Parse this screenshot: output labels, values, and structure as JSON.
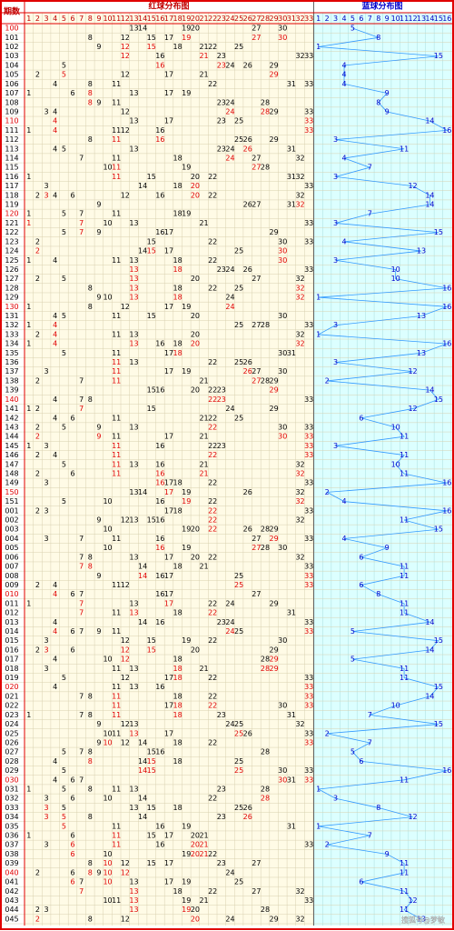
{
  "header": {
    "period": "期数",
    "red_title": "红球分布图",
    "blue_title": "蓝球分布图"
  },
  "red_columns": [
    1,
    2,
    3,
    4,
    5,
    6,
    7,
    8,
    9,
    10,
    11,
    12,
    13,
    14,
    15,
    16,
    17,
    18,
    19,
    20,
    21,
    22,
    23,
    24,
    25,
    26,
    27,
    28,
    29,
    30,
    31,
    32,
    33
  ],
  "blue_columns": [
    1,
    2,
    3,
    4,
    5,
    6,
    7,
    8,
    9,
    10,
    11,
    12,
    13,
    14,
    15,
    16
  ],
  "rows": [
    {
      "period": "100",
      "red": [
        13,
        14,
        19,
        20,
        27,
        30
      ],
      "blue": 5
    },
    {
      "period": "101",
      "red": [
        8,
        12,
        15,
        17,
        19,
        27,
        30
      ],
      "blue": 8
    },
    {
      "period": "102",
      "red": [
        9,
        12,
        15,
        18,
        21,
        22,
        25
      ],
      "blue": 1
    },
    {
      "period": "103",
      "red": [
        12,
        16,
        21,
        23,
        32,
        33
      ],
      "blue": 15
    },
    {
      "period": "104",
      "red": [
        5,
        16,
        23,
        24,
        26,
        29
      ],
      "blue": 4
    },
    {
      "period": "105",
      "red": [
        2,
        5,
        12,
        17,
        21,
        29
      ],
      "blue": 4
    },
    {
      "period": "106",
      "red": [
        4,
        8,
        11,
        22,
        31,
        33
      ],
      "blue": 4
    },
    {
      "period": "107",
      "red": [
        1,
        6,
        8,
        13,
        17,
        19
      ],
      "blue": 9
    },
    {
      "period": "108",
      "red": [
        8,
        9,
        11,
        23,
        24,
        28
      ],
      "blue": 8
    },
    {
      "period": "109",
      "red": [
        3,
        4,
        12,
        24,
        28,
        29,
        33
      ],
      "blue": 9
    },
    {
      "period": "110",
      "red": [
        4,
        13,
        17,
        23,
        25,
        33
      ],
      "blue": 14
    },
    {
      "period": "111",
      "red": [
        1,
        4,
        11,
        12,
        16,
        33
      ],
      "blue": 16
    },
    {
      "period": "112",
      "red": [
        8,
        11,
        16,
        25,
        26,
        29
      ],
      "blue": 3
    },
    {
      "period": "113",
      "red": [
        4,
        5,
        13,
        23,
        24,
        26,
        31
      ],
      "blue": 11
    },
    {
      "period": "114",
      "red": [
        7,
        11,
        18,
        24,
        27,
        32
      ],
      "blue": 4
    },
    {
      "period": "115",
      "red": [
        10,
        11,
        19,
        27,
        28
      ],
      "blue": 7
    },
    {
      "period": "116",
      "red": [
        1,
        11,
        15,
        20,
        22,
        31,
        32
      ],
      "blue": 3
    },
    {
      "period": "117",
      "red": [
        3,
        14,
        18,
        20,
        33
      ],
      "blue": 12
    },
    {
      "period": "118",
      "red": [
        2,
        3,
        4,
        6,
        12,
        16,
        20,
        22,
        32
      ],
      "blue": 14
    },
    {
      "period": "119",
      "red": [
        9,
        26,
        27,
        31,
        32
      ],
      "blue": 14
    },
    {
      "period": "120",
      "red": [
        1,
        5,
        7,
        11,
        18,
        19
      ],
      "blue": 7
    },
    {
      "period": "121",
      "red": [
        1,
        7,
        10,
        13,
        21,
        33
      ],
      "blue": 3
    },
    {
      "period": "122",
      "red": [
        5,
        7,
        9,
        16,
        17,
        29
      ],
      "blue": 15
    },
    {
      "period": "123",
      "red": [
        2,
        15,
        22,
        30,
        33
      ],
      "blue": 4
    },
    {
      "period": "124",
      "red": [
        2,
        14,
        15,
        17,
        25,
        30
      ],
      "blue": 13
    },
    {
      "period": "125",
      "red": [
        1,
        4,
        11,
        13,
        18,
        22,
        30
      ],
      "blue": 3
    },
    {
      "period": "126",
      "red": [
        13,
        18,
        23,
        24,
        26,
        33
      ],
      "blue": 10
    },
    {
      "period": "127",
      "red": [
        2,
        5,
        13,
        20,
        27,
        32
      ],
      "blue": 10
    },
    {
      "period": "128",
      "red": [
        8,
        13,
        18,
        22,
        25,
        32
      ],
      "blue": 16
    },
    {
      "period": "129",
      "red": [
        9,
        10,
        13,
        18,
        24,
        32
      ],
      "blue": 1
    },
    {
      "period": "130",
      "red": [
        1,
        8,
        12,
        17,
        19,
        24
      ],
      "blue": 16
    },
    {
      "period": "131",
      "red": [
        4,
        5,
        11,
        15,
        20,
        30
      ],
      "blue": 13
    },
    {
      "period": "132",
      "red": [
        1,
        4,
        25,
        27,
        28,
        33
      ],
      "blue": 3
    },
    {
      "period": "133",
      "red": [
        2,
        4,
        11,
        13,
        20,
        32
      ],
      "blue": 1
    },
    {
      "period": "134",
      "red": [
        1,
        4,
        13,
        16,
        18,
        20,
        32
      ],
      "blue": 16
    },
    {
      "period": "135",
      "red": [
        5,
        11,
        17,
        18,
        30,
        31
      ],
      "blue": 13
    },
    {
      "period": "136",
      "red": [
        11,
        13,
        22,
        25,
        26
      ],
      "blue": 3
    },
    {
      "period": "137",
      "red": [
        3,
        11,
        17,
        19,
        26,
        27,
        30
      ],
      "blue": 12
    },
    {
      "period": "138",
      "red": [
        2,
        7,
        11,
        21,
        27,
        28,
        29
      ],
      "blue": 2
    },
    {
      "period": "139",
      "red": [
        15,
        16,
        20,
        22,
        23,
        29
      ],
      "blue": 14
    },
    {
      "period": "140",
      "red": [
        4,
        7,
        8,
        22,
        23,
        33
      ],
      "blue": 15
    },
    {
      "period": "141",
      "red": [
        1,
        2,
        7,
        15,
        24,
        29
      ],
      "blue": 12
    },
    {
      "period": "142",
      "red": [
        4,
        6,
        11,
        21,
        22,
        25
      ],
      "blue": 6
    },
    {
      "period": "143",
      "red": [
        2,
        5,
        9,
        13,
        22,
        30,
        33
      ],
      "blue": 10
    },
    {
      "period": "144",
      "red": [
        2,
        9,
        11,
        17,
        21,
        30,
        33
      ],
      "blue": 11
    },
    {
      "period": "145",
      "red": [
        1,
        3,
        11,
        16,
        22,
        23,
        33
      ],
      "blue": 3
    },
    {
      "period": "146",
      "red": [
        2,
        4,
        11,
        22,
        33
      ],
      "blue": 11
    },
    {
      "period": "147",
      "red": [
        5,
        11,
        13,
        16,
        21,
        32
      ],
      "blue": 10
    },
    {
      "period": "148",
      "red": [
        2,
        6,
        11,
        16,
        21,
        32
      ],
      "blue": 11
    },
    {
      "period": "149",
      "red": [
        3,
        16,
        17,
        18,
        22,
        33
      ],
      "blue": 16
    },
    {
      "period": "150",
      "red": [
        13,
        14,
        17,
        19,
        26,
        32
      ],
      "blue": 2
    },
    {
      "period": "151",
      "red": [
        5,
        10,
        16,
        19,
        22,
        32
      ],
      "blue": 4
    },
    {
      "period": "001",
      "red": [
        2,
        3,
        17,
        18,
        22,
        33
      ],
      "blue": 16
    },
    {
      "period": "002",
      "red": [
        9,
        12,
        13,
        15,
        16,
        22,
        32
      ],
      "blue": 11
    },
    {
      "period": "003",
      "red": [
        10,
        19,
        20,
        22,
        26,
        28,
        29
      ],
      "blue": 15
    },
    {
      "period": "004",
      "red": [
        3,
        7,
        11,
        16,
        27,
        29,
        33
      ],
      "blue": 4
    },
    {
      "period": "005",
      "red": [
        10,
        16,
        19,
        27,
        28,
        30
      ],
      "blue": 9
    },
    {
      "period": "006",
      "red": [
        7,
        8,
        13,
        17,
        20,
        22,
        32
      ],
      "blue": 6
    },
    {
      "period": "007",
      "red": [
        7,
        8,
        14,
        18,
        21,
        33
      ],
      "blue": 11
    },
    {
      "period": "008",
      "red": [
        9,
        14,
        16,
        17,
        25,
        33
      ],
      "blue": 11
    },
    {
      "period": "009",
      "red": [
        2,
        4,
        11,
        12,
        25,
        33
      ],
      "blue": 6
    },
    {
      "period": "010",
      "red": [
        4,
        6,
        7,
        16,
        17,
        27
      ],
      "blue": 8
    },
    {
      "period": "011",
      "red": [
        1,
        7,
        13,
        17,
        22,
        24,
        29
      ],
      "blue": 11
    },
    {
      "period": "012",
      "red": [
        7,
        11,
        13,
        18,
        22,
        31
      ],
      "blue": 11
    },
    {
      "period": "013",
      "red": [
        4,
        14,
        16,
        23,
        24,
        33
      ],
      "blue": 14
    },
    {
      "period": "014",
      "red": [
        4,
        6,
        7,
        9,
        11,
        24,
        25,
        33
      ],
      "blue": 5
    },
    {
      "period": "015",
      "red": [
        3,
        12,
        15,
        19,
        22,
        30
      ],
      "blue": 15
    },
    {
      "period": "016",
      "red": [
        2,
        3,
        6,
        12,
        15,
        20,
        29
      ],
      "blue": 14
    },
    {
      "period": "017",
      "red": [
        4,
        10,
        12,
        18,
        28,
        29
      ],
      "blue": 5
    },
    {
      "period": "018",
      "red": [
        3,
        11,
        13,
        18,
        21,
        28,
        29
      ],
      "blue": 11
    },
    {
      "period": "019",
      "red": [
        5,
        12,
        17,
        18,
        22,
        33
      ],
      "blue": 11
    },
    {
      "period": "020",
      "red": [
        4,
        11,
        13,
        16,
        33
      ],
      "blue": 15
    },
    {
      "period": "021",
      "red": [
        7,
        8,
        11,
        18,
        22,
        33
      ],
      "blue": 14
    },
    {
      "period": "022",
      "red": [
        11,
        17,
        18,
        22,
        30,
        33
      ],
      "blue": 10
    },
    {
      "period": "023",
      "red": [
        1,
        7,
        8,
        11,
        18,
        23,
        31
      ],
      "blue": 7
    },
    {
      "period": "024",
      "red": [
        9,
        12,
        13,
        24,
        25,
        32
      ],
      "blue": 15
    },
    {
      "period": "025",
      "red": [
        10,
        11,
        13,
        17,
        25,
        26,
        33
      ],
      "blue": 2
    },
    {
      "period": "026",
      "red": [
        9,
        10,
        12,
        14,
        18,
        22,
        33
      ],
      "blue": 7
    },
    {
      "period": "027",
      "red": [
        5,
        7,
        8,
        15,
        16,
        28
      ],
      "blue": 5
    },
    {
      "period": "028",
      "red": [
        4,
        8,
        14,
        15,
        18,
        25
      ],
      "blue": 6
    },
    {
      "period": "029",
      "red": [
        5,
        14,
        15,
        25,
        30,
        33
      ],
      "blue": 16
    },
    {
      "period": "030",
      "red": [
        4,
        6,
        7,
        30,
        31,
        33
      ],
      "blue": 11
    },
    {
      "period": "031",
      "red": [
        1,
        5,
        8,
        11,
        13,
        23,
        28
      ],
      "blue": 1
    },
    {
      "period": "032",
      "red": [
        3,
        6,
        10,
        14,
        22,
        28
      ],
      "blue": 3
    },
    {
      "period": "033",
      "red": [
        3,
        5,
        13,
        15,
        18,
        25,
        26
      ],
      "blue": 8
    },
    {
      "period": "034",
      "red": [
        3,
        5,
        8,
        14,
        23,
        26
      ],
      "blue": 12
    },
    {
      "period": "035",
      "red": [
        5,
        11,
        16,
        19,
        31
      ],
      "blue": 1
    },
    {
      "period": "036",
      "red": [
        1,
        6,
        11,
        15,
        17,
        20,
        21
      ],
      "blue": 7
    },
    {
      "period": "037",
      "red": [
        3,
        6,
        11,
        16,
        20,
        21,
        33
      ],
      "blue": 2
    },
    {
      "period": "038",
      "red": [
        6,
        10,
        19,
        20,
        21,
        22
      ],
      "blue": 9
    },
    {
      "period": "039",
      "red": [
        8,
        10,
        12,
        15,
        17,
        23,
        27
      ],
      "blue": 11
    },
    {
      "period": "040",
      "red": [
        2,
        6,
        8,
        9,
        10,
        12,
        24
      ],
      "blue": 11
    },
    {
      "period": "041",
      "red": [
        6,
        7,
        10,
        13,
        17,
        19,
        25
      ],
      "blue": 6
    },
    {
      "period": "042",
      "red": [
        7,
        13,
        18,
        22,
        27,
        32
      ],
      "blue": 11
    },
    {
      "period": "043",
      "red": [
        10,
        11,
        13,
        19,
        21,
        33
      ],
      "blue": 12
    },
    {
      "period": "044",
      "red": [
        2,
        3,
        13,
        19,
        20,
        28
      ],
      "blue": 11
    },
    {
      "period": "045",
      "red": [
        2,
        8,
        12,
        20,
        24,
        29,
        32
      ],
      "blue": 13
    }
  ],
  "watermark": "搜狐号@梦敏"
}
